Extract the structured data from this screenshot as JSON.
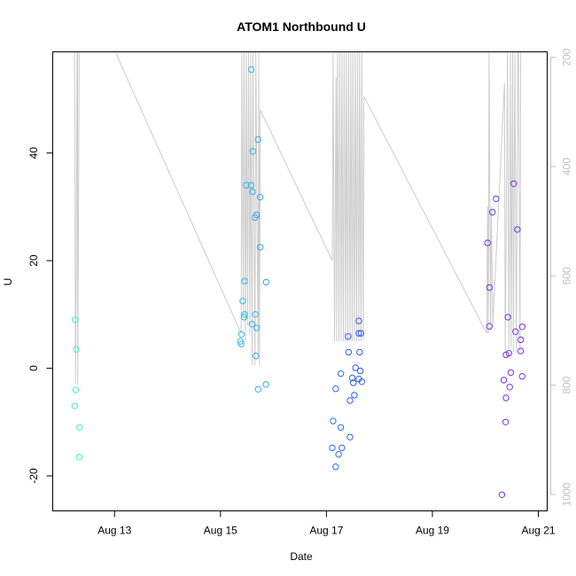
{
  "chart_data": {
    "type": "scatter",
    "title": "ATOM1 Northbound U",
    "xlabel": "Date",
    "ylabel": "U",
    "x_axis": {
      "type": "date",
      "range": [
        "2015-08-11T20:00",
        "2015-08-21T04:00"
      ],
      "ticks": [
        {
          "value": "2015-08-13",
          "label": "Aug 13"
        },
        {
          "value": "2015-08-15",
          "label": "Aug 15"
        },
        {
          "value": "2015-08-17",
          "label": "Aug 17"
        },
        {
          "value": "2015-08-19",
          "label": "Aug 19"
        },
        {
          "value": "2015-08-21",
          "label": "Aug 21"
        }
      ]
    },
    "y_axis": {
      "range": [
        -26.5,
        58.8
      ],
      "ticks": [
        -20,
        0,
        20,
        40
      ],
      "tick_labels": [
        "-20",
        "0",
        "20",
        "40"
      ]
    },
    "y2_axis": {
      "reversed": true,
      "range": [
        1030,
        190
      ],
      "ticks": [
        200,
        400,
        600,
        800,
        1000
      ],
      "tick_labels": [
        "200",
        "400",
        "600",
        "800",
        "1000"
      ],
      "color": "#c0c0c0"
    },
    "grid": false,
    "legend": "none",
    "colors": {
      "line": "#cccccc",
      "axis": "#000000",
      "secondary_axis": "#c0c0c0",
      "cmap_start": "#3cf5c5",
      "cmap_mid1": "#33c8ee",
      "cmap_mid2": "#2c4ef0",
      "cmap_end": "#7e2fe6"
    },
    "points": [
      {
        "x": "2015-08-12T06:10",
        "y": 9.0
      },
      {
        "x": "2015-08-12T06:40",
        "y": 3.5
      },
      {
        "x": "2015-08-12T06:25",
        "y": -4.0
      },
      {
        "x": "2015-08-12T06:00",
        "y": -7.0
      },
      {
        "x": "2015-08-12T08:10",
        "y": -11.0
      },
      {
        "x": "2015-08-12T08:00",
        "y": -16.5
      },
      {
        "x": "2015-08-15T13:55",
        "y": 55.5
      },
      {
        "x": "2015-08-15T17:00",
        "y": 42.5
      },
      {
        "x": "2015-08-15T14:40",
        "y": 40.3
      },
      {
        "x": "2015-08-15T11:40",
        "y": 34.0
      },
      {
        "x": "2015-08-15T13:50",
        "y": 34.0
      },
      {
        "x": "2015-08-15T14:30",
        "y": 32.8
      },
      {
        "x": "2015-08-15T18:00",
        "y": 31.8
      },
      {
        "x": "2015-08-15T16:20",
        "y": 28.5
      },
      {
        "x": "2015-08-15T15:40",
        "y": 28.0
      },
      {
        "x": "2015-08-15T18:00",
        "y": 22.5
      },
      {
        "x": "2015-08-15T10:55",
        "y": 16.2
      },
      {
        "x": "2015-08-15T20:40",
        "y": 16.0
      },
      {
        "x": "2015-08-15T10:05",
        "y": 12.5
      },
      {
        "x": "2015-08-15T10:55",
        "y": 10.0
      },
      {
        "x": "2015-08-15T15:45",
        "y": 10.0
      },
      {
        "x": "2015-08-15T10:40",
        "y": 9.5
      },
      {
        "x": "2015-08-15T14:15",
        "y": 8.2
      },
      {
        "x": "2015-08-15T16:25",
        "y": 7.5
      },
      {
        "x": "2015-08-15T09:30",
        "y": 6.3
      },
      {
        "x": "2015-08-15T09:00",
        "y": 5.0
      },
      {
        "x": "2015-08-15T09:20",
        "y": 4.5
      },
      {
        "x": "2015-08-15T16:00",
        "y": 2.3
      },
      {
        "x": "2015-08-15T20:35",
        "y": -3.0
      },
      {
        "x": "2015-08-15T17:00",
        "y": -3.9
      },
      {
        "x": "2015-08-17T14:40",
        "y": 8.8
      },
      {
        "x": "2015-08-17T14:40",
        "y": 6.5
      },
      {
        "x": "2015-08-17T15:40",
        "y": 6.5
      },
      {
        "x": "2015-08-17T09:50",
        "y": 5.9
      },
      {
        "x": "2015-08-17T10:00",
        "y": 3.0
      },
      {
        "x": "2015-08-17T15:00",
        "y": 3.0
      },
      {
        "x": "2015-08-17T13:10",
        "y": 0.1
      },
      {
        "x": "2015-08-17T15:20",
        "y": -0.5
      },
      {
        "x": "2015-08-17T06:30",
        "y": -1.0
      },
      {
        "x": "2015-08-17T11:40",
        "y": -1.8
      },
      {
        "x": "2015-08-17T14:40",
        "y": -2.0
      },
      {
        "x": "2015-08-17T16:00",
        "y": -2.5
      },
      {
        "x": "2015-08-17T12:10",
        "y": -2.7
      },
      {
        "x": "2015-08-17T04:10",
        "y": -3.8
      },
      {
        "x": "2015-08-17T12:40",
        "y": -5.0
      },
      {
        "x": "2015-08-17T10:40",
        "y": -6.0
      },
      {
        "x": "2015-08-17T03:00",
        "y": -9.8
      },
      {
        "x": "2015-08-17T06:30",
        "y": -11.0
      },
      {
        "x": "2015-08-17T10:40",
        "y": -12.8
      },
      {
        "x": "2015-08-17T02:40",
        "y": -14.8
      },
      {
        "x": "2015-08-17T07:00",
        "y": -14.8
      },
      {
        "x": "2015-08-17T05:30",
        "y": -16.0
      },
      {
        "x": "2015-08-17T04:10",
        "y": -18.3
      },
      {
        "x": "2015-08-20T12:50",
        "y": 34.3
      },
      {
        "x": "2015-08-20T04:50",
        "y": 31.5
      },
      {
        "x": "2015-08-20T03:10",
        "y": 29.0
      },
      {
        "x": "2015-08-20T14:30",
        "y": 25.8
      },
      {
        "x": "2015-08-20T01:00",
        "y": 23.3
      },
      {
        "x": "2015-08-20T01:50",
        "y": 15.0
      },
      {
        "x": "2015-08-20T10:10",
        "y": 9.5
      },
      {
        "x": "2015-08-20T01:50",
        "y": 7.8
      },
      {
        "x": "2015-08-20T16:40",
        "y": 7.7
      },
      {
        "x": "2015-08-20T13:40",
        "y": 6.8
      },
      {
        "x": "2015-08-20T16:00",
        "y": 5.3
      },
      {
        "x": "2015-08-20T16:00",
        "y": 3.2
      },
      {
        "x": "2015-08-20T10:40",
        "y": 2.8
      },
      {
        "x": "2015-08-20T09:20",
        "y": 2.5
      },
      {
        "x": "2015-08-20T11:30",
        "y": -0.8
      },
      {
        "x": "2015-08-20T16:40",
        "y": -1.5
      },
      {
        "x": "2015-08-20T08:20",
        "y": -2.2
      },
      {
        "x": "2015-08-20T11:00",
        "y": -3.5
      },
      {
        "x": "2015-08-20T09:20",
        "y": -5.5
      },
      {
        "x": "2015-08-20T09:10",
        "y": -10.0
      },
      {
        "x": "2015-08-20T07:30",
        "y": -23.5
      }
    ],
    "pressure_series": [
      {
        "x": "2015-08-12T05:50",
        "y2": 190
      },
      {
        "x": "2015-08-12T06:05",
        "y": 43.0
      },
      {
        "x": "2015-08-12T06:20",
        "y": -3.0
      },
      {
        "x": "2015-08-12T06:40",
        "y": 20.0
      },
      {
        "x": "2015-08-12T07:00",
        "y2": 190
      },
      {
        "x": "2015-08-12T07:15",
        "y2": 190
      },
      {
        "x": "2015-08-12T07:20",
        "y": -3.0
      },
      {
        "x": "2015-08-12T08:00",
        "y2": 190
      },
      {
        "x": "2015-08-12T08:20",
        "y2": 190
      },
      {
        "x": "2015-08-13T00:20",
        "y2": 190
      },
      {
        "x": "2015-08-15T09:20",
        "y": 6.5
      },
      {
        "x": "2015-08-15T09:40",
        "y2": 190
      },
      {
        "x": "2015-08-15T10:20",
        "y": 10.0
      },
      {
        "x": "2015-08-15T10:40",
        "y2": 190
      },
      {
        "x": "2015-08-15T11:20",
        "y": 5.0
      },
      {
        "x": "2015-08-15T11:40",
        "y2": 190
      },
      {
        "x": "2015-08-15T12:20",
        "y": 8.0
      },
      {
        "x": "2015-08-15T12:40",
        "y2": 190
      },
      {
        "x": "2015-08-15T13:20",
        "y": 6.0
      },
      {
        "x": "2015-08-15T13:40",
        "y2": 190
      },
      {
        "x": "2015-08-15T14:20",
        "y": 0.5
      },
      {
        "x": "2015-08-15T14:40",
        "y2": 190
      },
      {
        "x": "2015-08-15T15:40",
        "y": 0.5
      },
      {
        "x": "2015-08-15T16:00",
        "y2": 190
      },
      {
        "x": "2015-08-15T17:00",
        "y": 2.0
      },
      {
        "x": "2015-08-15T17:20",
        "y2": 190
      },
      {
        "x": "2015-08-15T17:40",
        "y": 0.5
      },
      {
        "x": "2015-08-15T18:00",
        "y": 48.0
      },
      {
        "x": "2015-08-17T02:40",
        "y": 20.0
      },
      {
        "x": "2015-08-17T03:00",
        "y2": 190
      },
      {
        "x": "2015-08-17T03:40",
        "y": 5.0
      },
      {
        "x": "2015-08-17T04:20",
        "y": 54.0
      },
      {
        "x": "2015-08-17T04:40",
        "y": 5.0
      },
      {
        "x": "2015-08-17T05:00",
        "y2": 190
      },
      {
        "x": "2015-08-17T05:40",
        "y": 5.0
      },
      {
        "x": "2015-08-17T06:00",
        "y2": 190
      },
      {
        "x": "2015-08-17T06:40",
        "y": 5.0
      },
      {
        "x": "2015-08-17T07:00",
        "y2": 190
      },
      {
        "x": "2015-08-17T07:40",
        "y": 5.0
      },
      {
        "x": "2015-08-17T08:00",
        "y2": 190
      },
      {
        "x": "2015-08-17T08:40",
        "y": 5.0
      },
      {
        "x": "2015-08-17T09:00",
        "y2": 190
      },
      {
        "x": "2015-08-17T09:40",
        "y": 5.0
      },
      {
        "x": "2015-08-17T10:00",
        "y2": 190
      },
      {
        "x": "2015-08-17T10:40",
        "y": 5.0
      },
      {
        "x": "2015-08-17T11:00",
        "y2": 190
      },
      {
        "x": "2015-08-17T11:40",
        "y": 5.0
      },
      {
        "x": "2015-08-17T12:00",
        "y2": 190
      },
      {
        "x": "2015-08-17T12:40",
        "y": 5.0
      },
      {
        "x": "2015-08-17T13:00",
        "y2": 190
      },
      {
        "x": "2015-08-17T13:40",
        "y": 5.0
      },
      {
        "x": "2015-08-17T14:00",
        "y2": 190
      },
      {
        "x": "2015-08-17T14:40",
        "y": 5.0
      },
      {
        "x": "2015-08-17T15:00",
        "y2": 190
      },
      {
        "x": "2015-08-17T15:40",
        "y": 5.0
      },
      {
        "x": "2015-08-17T16:00",
        "y2": 190
      },
      {
        "x": "2015-08-17T16:40",
        "y": 5.0
      },
      {
        "x": "2015-08-17T17:00",
        "y": 50.5
      },
      {
        "x": "2015-08-20T00:40",
        "y": 6.5
      },
      {
        "x": "2015-08-20T01:00",
        "y": 30.0
      },
      {
        "x": "2015-08-20T01:20",
        "y": 6.5
      },
      {
        "x": "2015-08-20T01:40",
        "y2": 190
      },
      {
        "x": "2015-08-20T02:20",
        "y": 7.0
      },
      {
        "x": "2015-08-20T02:40",
        "y": 30.0
      },
      {
        "x": "2015-08-20T03:20",
        "y": 8.0
      },
      {
        "x": "2015-08-20T08:40",
        "y": 53.0
      },
      {
        "x": "2015-08-20T09:00",
        "y": 3.0
      },
      {
        "x": "2015-08-20T10:00",
        "y2": 190
      },
      {
        "x": "2015-08-20T10:40",
        "y": 3.5
      },
      {
        "x": "2015-08-20T11:20",
        "y2": 190
      },
      {
        "x": "2015-08-20T11:40",
        "y": 4.0
      },
      {
        "x": "2015-08-20T12:20",
        "y2": 190
      },
      {
        "x": "2015-08-20T12:40",
        "y": 3.0
      },
      {
        "x": "2015-08-20T13:20",
        "y2": 190
      },
      {
        "x": "2015-08-20T14:00",
        "y": 3.0
      },
      {
        "x": "2015-08-20T14:40",
        "y2": 190
      },
      {
        "x": "2015-08-20T15:00",
        "y2": 190
      },
      {
        "x": "2015-08-20T15:40",
        "y": 3.0
      },
      {
        "x": "2015-08-20T16:00",
        "y2": 190
      }
    ]
  }
}
